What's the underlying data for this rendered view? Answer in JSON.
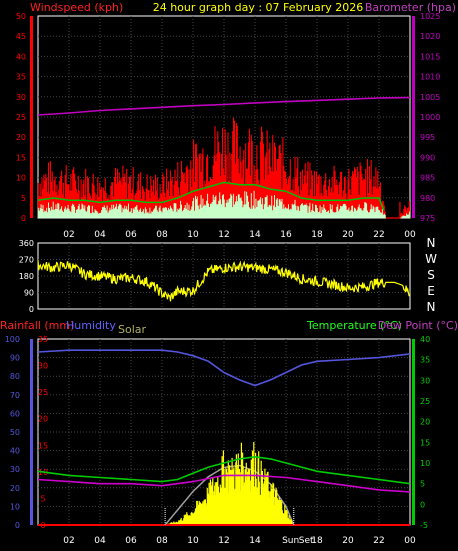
{
  "header": {
    "windspeed_label": "Windspeed (kph)",
    "title": "24 hour graph day : 07 February 2026",
    "barometer_label": "Barometer (hpa)"
  },
  "labels": {
    "rainfall": "Rainfall (mm)",
    "humidity": "Humidity",
    "solar": "Solar",
    "temperature": "Temperature (°C)",
    "dewpoint": "Dew Point (°C)",
    "sunrise": "Sun",
    "sunset": "Set"
  },
  "compass": [
    "N",
    "W",
    "S",
    "E",
    "N"
  ],
  "colors": {
    "wind": "#ff0000",
    "gust_avg": "#00c000",
    "wind_calm": "#c8ffc8",
    "barometer": "#c000c0",
    "direction": "#ffff00",
    "rain": "#ff0000",
    "humidity": "#5555dd",
    "temperature": "#00cc00",
    "dewpoint": "#cc00cc",
    "solar": "#ffff00",
    "solar_max": "#a0a0a0",
    "grid": "#444444",
    "axis_text": "#ffffff"
  },
  "chart_data": [
    {
      "type": "line",
      "id": "wind-barometer",
      "x_ticks": [
        "02",
        "04",
        "06",
        "08",
        "10",
        "12",
        "14",
        "16",
        "18",
        "20",
        "22",
        "00"
      ],
      "ylabel_left": "Windspeed (kph)",
      "ylabel_right": "Barometer (hpa)",
      "ylim_left": [
        0,
        50
      ],
      "ylim_right": [
        975,
        1025
      ],
      "yticks_left": [
        0,
        5,
        10,
        15,
        20,
        25,
        30,
        35,
        40,
        45,
        50
      ],
      "yticks_right": [
        975,
        980,
        985,
        990,
        995,
        1000,
        1005,
        1010,
        1015,
        1020,
        1025
      ],
      "grid": true,
      "series": [
        {
          "name": "Windspeed (kph)",
          "axis": "left",
          "hours": [
            0,
            1,
            2,
            3,
            4,
            5,
            6,
            7,
            8,
            9,
            10,
            11,
            12,
            13,
            14,
            15,
            16,
            17,
            18,
            19,
            20,
            21,
            22,
            22.5,
            23.3,
            24
          ],
          "values": [
            8,
            9,
            8,
            8,
            7,
            8,
            8,
            7,
            7,
            9,
            12,
            14,
            16,
            15,
            15,
            13,
            12,
            9,
            8,
            8,
            8,
            9,
            9,
            0,
            0,
            4
          ]
        },
        {
          "name": "Barometer (hpa)",
          "axis": "right",
          "hours": [
            0,
            2,
            4,
            6,
            8,
            10,
            12,
            14,
            16,
            18,
            20,
            22,
            24
          ],
          "values": [
            1000.5,
            1001,
            1001.6,
            1002,
            1002.4,
            1002.8,
            1003.1,
            1003.5,
            1003.8,
            1004.1,
            1004.4,
            1004.7,
            1004.8
          ]
        }
      ]
    },
    {
      "type": "scatter",
      "id": "wind-direction",
      "yticks": [
        0,
        90,
        180,
        270,
        360
      ],
      "ylim": [
        0,
        360
      ],
      "series": [
        {
          "name": "Wind direction",
          "hours": [
            0,
            1,
            2,
            3,
            4,
            5,
            6,
            7,
            7.5,
            8,
            8.5,
            9,
            10,
            11,
            12,
            13,
            14,
            15,
            16,
            17,
            18,
            19,
            20,
            21,
            22,
            22.5,
            23,
            23.5,
            24
          ],
          "values": [
            240,
            225,
            240,
            190,
            180,
            165,
            170,
            150,
            120,
            85,
            60,
            95,
            100,
            205,
            225,
            230,
            225,
            215,
            200,
            165,
            150,
            135,
            115,
            120,
            145,
            145,
            145,
            130,
            80
          ]
        }
      ]
    },
    {
      "type": "line",
      "id": "temp-humidity-rain-solar",
      "x_ticks": [
        "02",
        "04",
        "06",
        "08",
        "10",
        "12",
        "14",
        "16",
        "18",
        "20",
        "22",
        "00"
      ],
      "ylim_rain": [
        0,
        35
      ],
      "yticks_rain": [
        0,
        5,
        10,
        15,
        20,
        25,
        30,
        35
      ],
      "ylim_humidity": [
        0,
        100
      ],
      "yticks_humidity": [
        0,
        10,
        20,
        30,
        40,
        50,
        60,
        70,
        80,
        90,
        100
      ],
      "ylim_temperature": [
        -5,
        40
      ],
      "yticks_temperature": [
        -5,
        0,
        5,
        10,
        15,
        20,
        25,
        30,
        35,
        40
      ],
      "grid": true,
      "series": [
        {
          "name": "Humidity",
          "axis": "humidity",
          "hours": [
            0,
            2,
            4,
            6,
            8,
            9,
            10,
            11,
            12,
            13,
            14,
            15,
            16,
            17,
            18,
            20,
            22,
            24
          ],
          "values": [
            93,
            94,
            94,
            94,
            94,
            93,
            91,
            88,
            82,
            78,
            75,
            78,
            82,
            86,
            88,
            89,
            90,
            92
          ]
        },
        {
          "name": "Temperature (°C)",
          "axis": "temperature",
          "hours": [
            0,
            2,
            4,
            6,
            8,
            9,
            10,
            11,
            12,
            13,
            14,
            15,
            16,
            17,
            18,
            20,
            22,
            24
          ],
          "values": [
            8,
            7,
            6.5,
            6,
            5.5,
            6,
            7.5,
            9,
            10,
            11,
            11.5,
            11,
            10,
            9,
            8,
            7,
            6,
            5
          ]
        },
        {
          "name": "Dew Point (°C)",
          "axis": "temperature",
          "hours": [
            0,
            2,
            4,
            6,
            8,
            10,
            12,
            14,
            16,
            18,
            20,
            22,
            24
          ],
          "values": [
            6,
            5.5,
            5,
            5,
            4.5,
            5.5,
            7,
            7,
            6.5,
            5.5,
            4.5,
            3.5,
            3
          ]
        },
        {
          "name": "Rainfall (mm)",
          "axis": "rain",
          "hours": [
            0,
            24
          ],
          "values": [
            0,
            0
          ]
        },
        {
          "name": "Solar",
          "axis": "humidity",
          "hours": [
            8,
            9,
            10,
            11,
            11.5,
            12,
            12.5,
            13,
            13.5,
            14,
            14.5,
            15,
            16,
            16.5
          ],
          "values": [
            0,
            2,
            8,
            18,
            25,
            33,
            30,
            36,
            34,
            38,
            26,
            22,
            8,
            0
          ]
        },
        {
          "name": "Solar max",
          "axis": "humidity",
          "hours": [
            8.2,
            9,
            10,
            11,
            12,
            13,
            14,
            15,
            16,
            16.5
          ],
          "values": [
            0,
            8,
            18,
            26,
            31,
            32,
            29,
            22,
            10,
            0
          ]
        }
      ],
      "sunrise_hour": 8.2,
      "sunset_hour": 16.5
    }
  ],
  "compass_labels": [
    "360",
    "270",
    "180",
    "90",
    "0"
  ]
}
